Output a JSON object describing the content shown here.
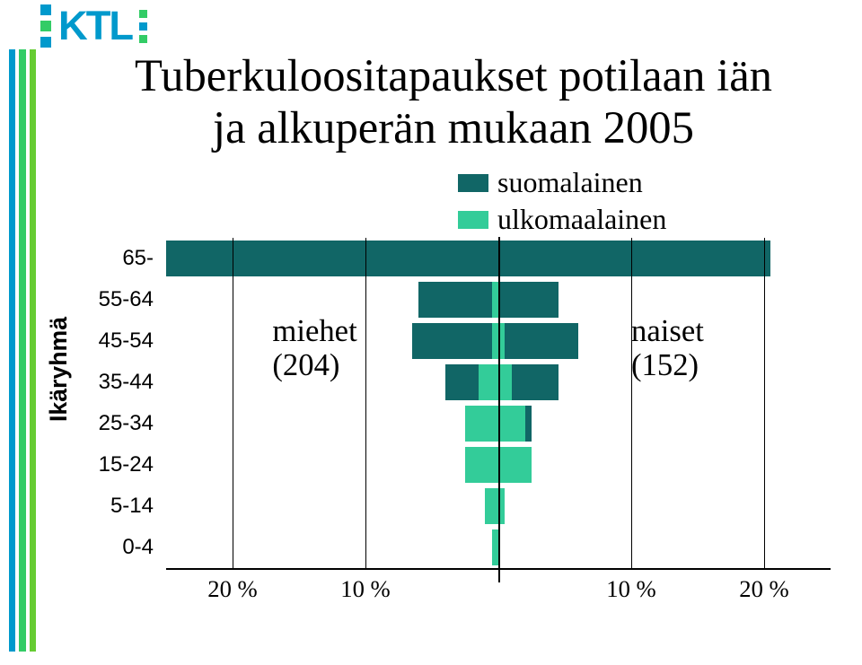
{
  "colors": {
    "brand_blue": "#0099cc",
    "brand_green": "#33cc66",
    "brand_lime": "#66cc33",
    "suomalainen": "#116666",
    "ulkomaalainen": "#33cc99",
    "axis": "#000000",
    "background": "#ffffff"
  },
  "logo": {
    "text": "KTL",
    "fontsize_pt": 34,
    "color": "#0099cc"
  },
  "title": {
    "line1": "Tuberkuloositapaukset potilaan iän",
    "line2": "ja alkuperän mukaan 2005",
    "fontsize_pt": 38,
    "color": "#000000"
  },
  "legend": {
    "items": [
      {
        "label": "suomalainen",
        "color_key": "suomalainen"
      },
      {
        "label": "ulkomaalainen",
        "color_key": "ulkomaalainen"
      }
    ],
    "fontsize_pt": 24
  },
  "ylabel": {
    "text": "Ikäryhmä",
    "fontsize_pt": 20
  },
  "overlay_left": {
    "line1": "miehet",
    "line2": "(204)",
    "fontsize_pt": 26
  },
  "overlay_right": {
    "line1": "naiset",
    "line2": "(152)",
    "fontsize_pt": 26
  },
  "pyramid": {
    "type": "population-pyramid",
    "x_extent_pct": 25,
    "xticks": [
      {
        "pos": -20,
        "label": "20 %"
      },
      {
        "pos": -10,
        "label": "10 %"
      },
      {
        "pos": 10,
        "label": "10 %"
      },
      {
        "pos": 20,
        "label": "20 %"
      }
    ],
    "xtick_fontsize_pt": 20,
    "gridlines_at": [
      -20,
      -10,
      10,
      20
    ],
    "categories": [
      "65-",
      "55-64",
      "45-54",
      "35-44",
      "25-34",
      "15-24",
      "5-14",
      "0-4"
    ],
    "cat_fontsize_pt": 18,
    "bars": {
      "65-": {
        "left_suom": 25.0,
        "left_ulko": 0.0,
        "right_suom": 20.5,
        "right_ulko": 0.0
      },
      "55-64": {
        "left_suom": 6.0,
        "left_ulko": 0.5,
        "right_suom": 4.5,
        "right_ulko": 0.0
      },
      "45-54": {
        "left_suom": 6.5,
        "left_ulko": 0.5,
        "right_suom": 6.0,
        "right_ulko": 0.5
      },
      "35-44": {
        "left_suom": 4.0,
        "left_ulko": 1.5,
        "right_suom": 4.5,
        "right_ulko": 1.0
      },
      "25-34": {
        "left_suom": 2.0,
        "left_ulko": 2.5,
        "right_suom": 2.5,
        "right_ulko": 2.0
      },
      "15-24": {
        "left_suom": 1.0,
        "left_ulko": 2.5,
        "right_suom": 1.5,
        "right_ulko": 2.5
      },
      "5-14": {
        "left_suom": 0.0,
        "left_ulko": 1.0,
        "right_suom": 0.5,
        "right_ulko": 0.5
      },
      "0-4": {
        "left_suom": 0.0,
        "left_ulko": 0.5,
        "right_suom": 0.0,
        "right_ulko": 0.0
      }
    }
  }
}
